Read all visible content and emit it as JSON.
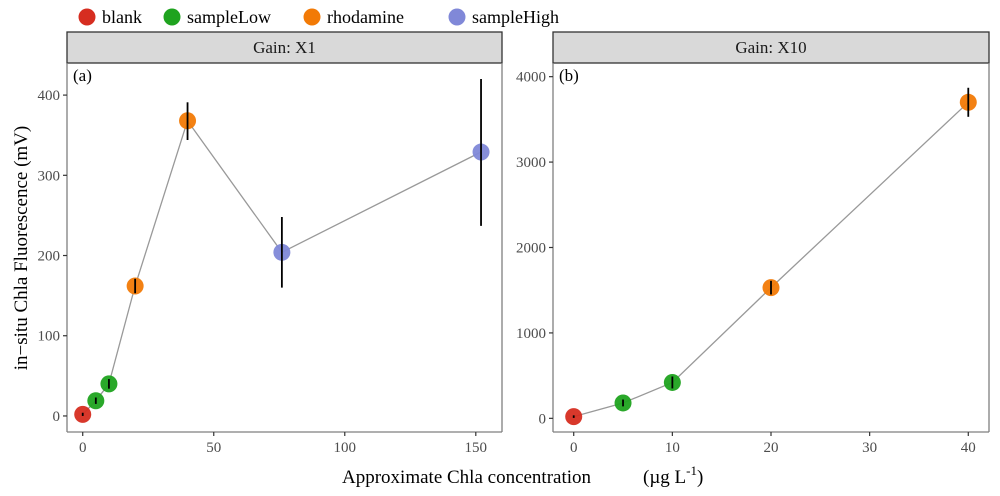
{
  "chart_data": {
    "type": "scatter",
    "legend": {
      "position": "top-left",
      "entries": [
        {
          "name": "blank",
          "color": "#d62d20"
        },
        {
          "name": "sampleLow",
          "color": "#1fa31f"
        },
        {
          "name": "rhodamine",
          "color": "#f27a06"
        },
        {
          "name": "sampleHigh",
          "color": "#8088d8"
        }
      ]
    },
    "xlabel": "Approximate Chla concentration",
    "xlabel_units": "(µg L",
    "xlabel_units_sup": "-1",
    "xlabel_units_close": ")",
    "ylabel": "in−situ Chla Fluorescence (mV)",
    "line_color": "#999999",
    "panels": [
      {
        "strip": "Gain: X1",
        "tag": "(a)",
        "xlim": [
          -6,
          160
        ],
        "ylim": [
          -20,
          440
        ],
        "xticks": [
          0,
          50,
          100,
          150
        ],
        "xtick_labels": [
          "0",
          "50",
          "100",
          "150"
        ],
        "yticks": [
          0,
          100,
          200,
          300,
          400
        ],
        "ytick_labels": [
          "0",
          "100",
          "200",
          "300",
          "400"
        ],
        "grid": false,
        "points": [
          {
            "group": "blank",
            "x": 0,
            "y": 2,
            "ymin": 0,
            "ymax": 4
          },
          {
            "group": "sampleLow",
            "x": 5,
            "y": 19,
            "ymin": 15,
            "ymax": 23
          },
          {
            "group": "sampleLow",
            "x": 10,
            "y": 40,
            "ymin": 34,
            "ymax": 46
          },
          {
            "group": "rhodamine",
            "x": 20,
            "y": 162,
            "ymin": 153,
            "ymax": 171
          },
          {
            "group": "rhodamine",
            "x": 40,
            "y": 368,
            "ymin": 344,
            "ymax": 391
          },
          {
            "group": "sampleHigh",
            "x": 76,
            "y": 204,
            "ymin": 160,
            "ymax": 248
          },
          {
            "group": "sampleHigh",
            "x": 152,
            "y": 329,
            "ymin": 237,
            "ymax": 420
          }
        ]
      },
      {
        "strip": "Gain:  X10",
        "tag": "(b)",
        "xlim": [
          -2.1,
          42.1
        ],
        "ylim": [
          -160,
          4160
        ],
        "xticks": [
          0,
          10,
          20,
          30,
          40
        ],
        "xtick_labels": [
          "0",
          "10",
          "20",
          "30",
          "40"
        ],
        "yticks": [
          0,
          1000,
          2000,
          3000,
          4000
        ],
        "ytick_labels": [
          "0",
          "1000",
          "2000",
          "3000",
          "4000"
        ],
        "grid": false,
        "points": [
          {
            "group": "blank",
            "x": 0,
            "y": 20,
            "ymin": 5,
            "ymax": 35
          },
          {
            "group": "sampleLow",
            "x": 5,
            "y": 180,
            "ymin": 140,
            "ymax": 220
          },
          {
            "group": "sampleLow",
            "x": 10,
            "y": 420,
            "ymin": 350,
            "ymax": 490
          },
          {
            "group": "rhodamine",
            "x": 20,
            "y": 1530,
            "ymin": 1450,
            "ymax": 1610
          },
          {
            "group": "rhodamine",
            "x": 40,
            "y": 3700,
            "ymin": 3530,
            "ymax": 3870
          }
        ]
      }
    ]
  }
}
